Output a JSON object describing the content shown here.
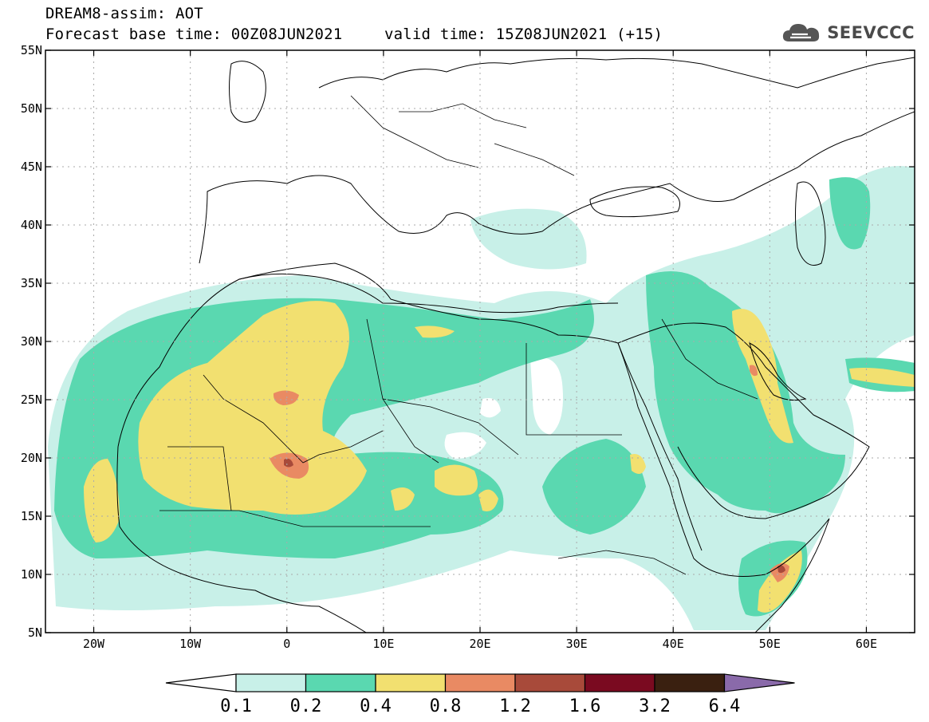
{
  "header": {
    "line1": "DREAM8-assim: AOT",
    "line2": "Forecast base time: 00Z08JUN2021",
    "line3": "valid time: 15Z08JUN2021 (+15)"
  },
  "logo": {
    "text": "SEEVCCC",
    "icon": "cloud-icon"
  },
  "map": {
    "lon_range": [
      -25,
      65
    ],
    "lat_range": [
      5,
      55
    ],
    "lat_ticks": [
      {
        "value": 55,
        "label": "55N"
      },
      {
        "value": 50,
        "label": "50N"
      },
      {
        "value": 45,
        "label": "45N"
      },
      {
        "value": 40,
        "label": "40N"
      },
      {
        "value": 35,
        "label": "35N"
      },
      {
        "value": 30,
        "label": "30N"
      },
      {
        "value": 25,
        "label": "25N"
      },
      {
        "value": 20,
        "label": "20N"
      },
      {
        "value": 15,
        "label": "15N"
      },
      {
        "value": 10,
        "label": "10N"
      },
      {
        "value": 5,
        "label": "5N"
      }
    ],
    "lon_ticks": [
      {
        "value": -20,
        "label": "20W"
      },
      {
        "value": -10,
        "label": "10W"
      },
      {
        "value": 0,
        "label": "0"
      },
      {
        "value": 10,
        "label": "10E"
      },
      {
        "value": 20,
        "label": "20E"
      },
      {
        "value": 30,
        "label": "30E"
      },
      {
        "value": 40,
        "label": "40E"
      },
      {
        "value": 50,
        "label": "50E"
      },
      {
        "value": 60,
        "label": "60E"
      }
    ],
    "grid": true
  },
  "legend": {
    "colors": [
      "#c8f0e8",
      "#5ad8b0",
      "#f2e070",
      "#e98a63",
      "#a84a3a",
      "#7a0a20",
      "#3a2010",
      "#8a6aaa"
    ],
    "labels": [
      "0.1",
      "0.2",
      "0.4",
      "0.8",
      "1.2",
      "1.6",
      "3.2",
      "6.4"
    ]
  }
}
